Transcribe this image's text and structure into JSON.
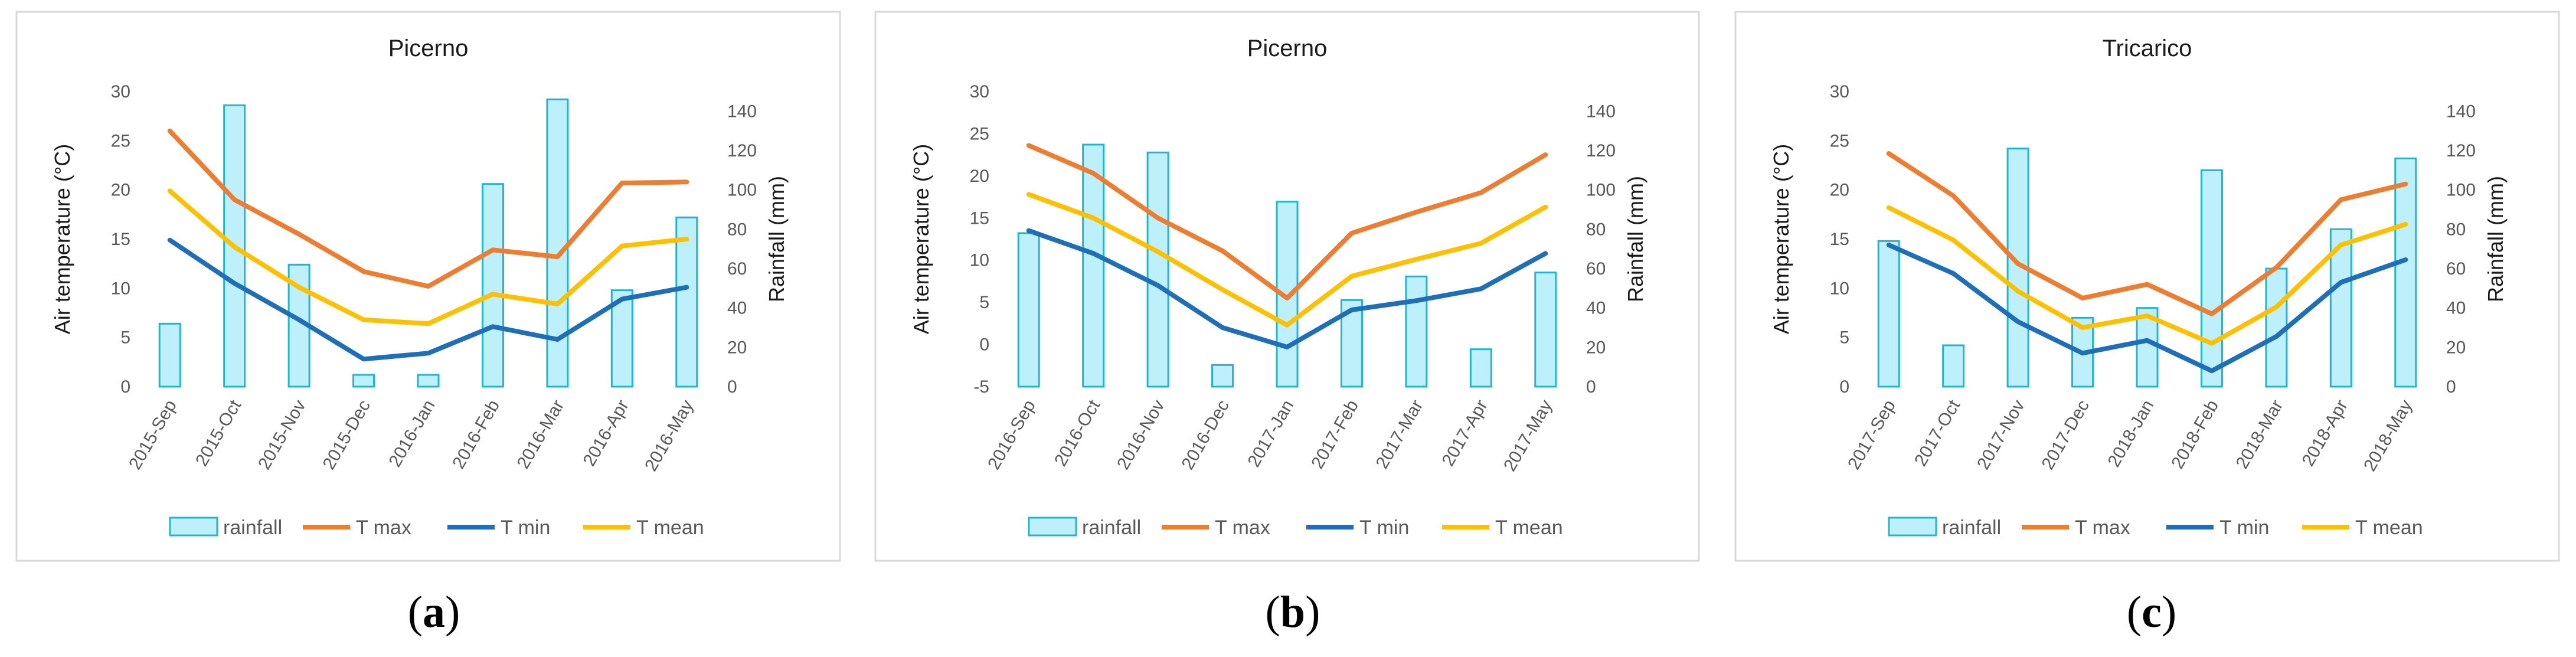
{
  "colors": {
    "rainfall_fill": "#bdf0fb",
    "rainfall_stroke": "#1fb5d6",
    "t_max": "#ed7d31",
    "t_min": "#1f6fb8",
    "t_mean": "#ffc000"
  },
  "legend": [
    "rainfall",
    "T max",
    "T min",
    "T mean"
  ],
  "chart_data": [
    {
      "type": "bar+line",
      "panel_letter": "a",
      "title": "Picerno",
      "categories": [
        "2015-Sep",
        "2015-Oct",
        "2015-Nov",
        "2015-Dec",
        "2016-Jan",
        "2016-Feb",
        "2016-Mar",
        "2016-Apr",
        "2016-May"
      ],
      "ylabel_left": "Air temperature (°C)",
      "ylabel_right": "Rainfall (mm)",
      "ylim_left": [
        0,
        30
      ],
      "yticks_left": [
        0,
        5,
        10,
        15,
        20,
        25,
        30
      ],
      "ylim_right": [
        0,
        150
      ],
      "yticks_right": [
        0,
        20,
        40,
        60,
        80,
        100,
        120,
        140
      ],
      "series": [
        {
          "name": "rainfall",
          "kind": "bar",
          "axis": "right",
          "values": [
            32,
            143,
            62,
            6,
            6,
            103,
            146,
            49,
            86
          ]
        },
        {
          "name": "T max",
          "kind": "line",
          "axis": "left",
          "values": [
            26.0,
            19.0,
            15.5,
            11.7,
            10.2,
            13.9,
            13.2,
            20.7,
            20.8
          ]
        },
        {
          "name": "T min",
          "kind": "line",
          "axis": "left",
          "values": [
            14.9,
            10.5,
            6.8,
            2.8,
            3.4,
            6.1,
            4.8,
            8.9,
            10.1
          ]
        },
        {
          "name": "T mean",
          "kind": "line",
          "axis": "left",
          "values": [
            19.9,
            14.2,
            10.1,
            6.8,
            6.4,
            9.4,
            8.4,
            14.3,
            15.0
          ]
        }
      ]
    },
    {
      "type": "bar+line",
      "panel_letter": "b",
      "title": "Picerno",
      "categories": [
        "2016-Sep",
        "2016-Oct",
        "2016-Nov",
        "2016-Dec",
        "2017-Jan",
        "2017-Feb",
        "2017-Mar",
        "2017-Apr",
        "2017-May"
      ],
      "ylabel_left": "Air temperature (°C)",
      "ylabel_right": "Rainfall (mm)",
      "ylim_left": [
        -5,
        30
      ],
      "yticks_left": [
        -5,
        0,
        5,
        10,
        15,
        20,
        25,
        30
      ],
      "ylim_right": [
        0,
        150
      ],
      "yticks_right": [
        0,
        20,
        40,
        60,
        80,
        100,
        120,
        140
      ],
      "series": [
        {
          "name": "rainfall",
          "kind": "bar",
          "axis": "right",
          "values": [
            78,
            123,
            119,
            11,
            94,
            44,
            56,
            19,
            58
          ]
        },
        {
          "name": "T max",
          "kind": "line",
          "axis": "left",
          "values": [
            23.6,
            20.3,
            15.0,
            11.1,
            5.5,
            13.2,
            15.7,
            18.0,
            22.5
          ]
        },
        {
          "name": "T min",
          "kind": "line",
          "axis": "left",
          "values": [
            13.5,
            10.8,
            7.0,
            2.0,
            -0.3,
            4.1,
            5.2,
            6.6,
            10.8
          ]
        },
        {
          "name": "T mean",
          "kind": "line",
          "axis": "left",
          "values": [
            17.8,
            15.0,
            11.0,
            6.5,
            2.3,
            8.1,
            10.1,
            12.0,
            16.3
          ]
        }
      ]
    },
    {
      "type": "bar+line",
      "panel_letter": "c",
      "title": "Tricarico",
      "categories": [
        "2017-Sep",
        "2017-Oct",
        "2017-Nov",
        "2017-Dec",
        "2018-Jan",
        "2018-Feb",
        "2018-Mar",
        "2018-Apr",
        "2018-May"
      ],
      "ylabel_left": "Air temperature (°C)",
      "ylabel_right": "Rainfall (mm)",
      "ylim_left": [
        0,
        30
      ],
      "yticks_left": [
        0,
        5,
        10,
        15,
        20,
        25,
        30
      ],
      "ylim_right": [
        0,
        150
      ],
      "yticks_right": [
        0,
        20,
        40,
        60,
        80,
        100,
        120,
        140
      ],
      "series": [
        {
          "name": "rainfall",
          "kind": "bar",
          "axis": "right",
          "values": [
            74,
            21,
            121,
            35,
            40,
            110,
            60,
            80,
            116
          ]
        },
        {
          "name": "T max",
          "kind": "line",
          "axis": "left",
          "values": [
            23.7,
            19.4,
            12.5,
            9.0,
            10.4,
            7.4,
            12.1,
            19.0,
            20.6
          ]
        },
        {
          "name": "T min",
          "kind": "line",
          "axis": "left",
          "values": [
            14.4,
            11.5,
            6.6,
            3.4,
            4.7,
            1.6,
            5.1,
            10.6,
            12.9
          ]
        },
        {
          "name": "T mean",
          "kind": "line",
          "axis": "left",
          "values": [
            18.2,
            14.9,
            9.7,
            6.0,
            7.2,
            4.4,
            8.1,
            14.4,
            16.5
          ]
        }
      ]
    }
  ]
}
